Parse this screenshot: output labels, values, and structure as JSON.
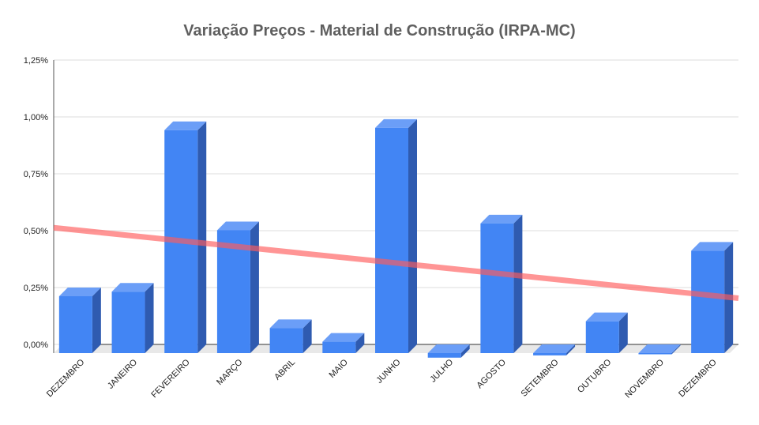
{
  "chart_data": {
    "type": "bar",
    "title": "Variação Preços - Material de Construção (IRPA-MC)",
    "xlabel": "",
    "ylabel": "",
    "categories": [
      "DEZEMBRO",
      "JANEIRO",
      "FEVEREIRO",
      "MARÇO",
      "ABRIL",
      "MAIO",
      "JUNHO",
      "JULHO",
      "AGOSTO",
      "SETEMBRO",
      "OUTUBRO",
      "NOVEMBRO",
      "DEZEMBRO"
    ],
    "series": [
      {
        "values": [
          0.25,
          0.27,
          0.98,
          0.54,
          0.11,
          0.05,
          0.99,
          -0.02,
          0.57,
          -0.01,
          0.14,
          0.0,
          0.45
        ]
      }
    ],
    "trendline": {
      "type": "linear",
      "start": 0.52,
      "end": 0.21,
      "color": "#ff5c5c"
    },
    "yticks": [
      "0,00%",
      "0,25%",
      "0,50%",
      "0,75%",
      "1,00%",
      "1,25%"
    ],
    "ylim": [
      0,
      1.25
    ],
    "grid": true,
    "legend": "none",
    "colors": {
      "bar_front": "#4285f4",
      "bar_top": "#6b9ef7",
      "bar_side": "#2f5bb0",
      "floor": "#e8e8e8",
      "grid": "#dddddd",
      "title": "#5f5f5f"
    }
  }
}
